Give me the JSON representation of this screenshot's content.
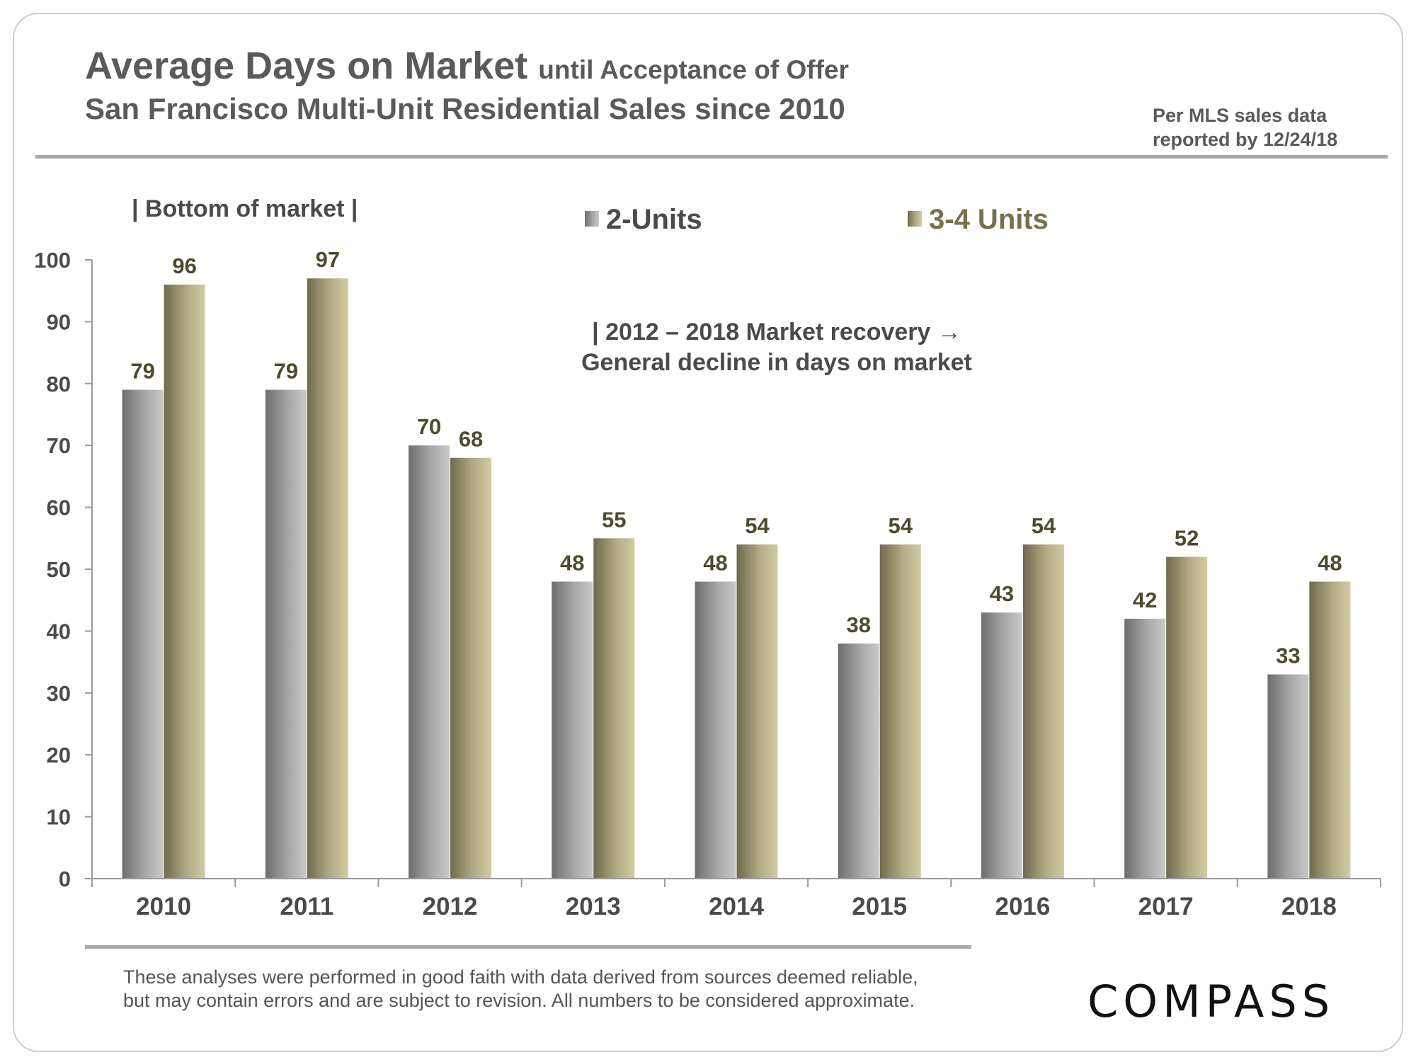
{
  "header": {
    "title_main": "Average Days on Market",
    "title_sub": "until Acceptance of Offer",
    "subtitle": "San Francisco Multi-Unit Residential Sales since 2010",
    "source_line1": "Per MLS sales data",
    "source_line2": "reported by 12/24/18"
  },
  "annotations": {
    "bottom_of_market": "| Bottom of market |",
    "recovery_line1": "|   2012 – 2018 Market recovery →",
    "recovery_line2": "General decline in days on market"
  },
  "footer": {
    "disclaimer_line1": "These analyses were performed in good faith with data derived from sources deemed reliable,",
    "disclaimer_line2": "but may contain errors and are subject to revision. All numbers to be considered  approximate.",
    "logo": "COMPASS"
  },
  "colors": {
    "two_units": "#a2a2a2",
    "three_four_units": "#b7b089",
    "legend_3_4_text": "#77704a",
    "data_label": "#4d4a2e"
  },
  "chart_data": {
    "type": "bar",
    "title": "Average Days on Market until Acceptance of Offer",
    "categories": [
      "2010",
      "2011",
      "2012",
      "2013",
      "2014",
      "2015",
      "2016",
      "2017",
      "2018"
    ],
    "series": [
      {
        "name": "2-Units",
        "values": [
          79,
          79,
          70,
          48,
          48,
          38,
          43,
          42,
          33
        ]
      },
      {
        "name": "3-4 Units",
        "values": [
          96,
          97,
          68,
          55,
          54,
          54,
          54,
          52,
          48
        ]
      }
    ],
    "ylim": [
      0,
      100
    ],
    "yticks": [
      "0",
      "10",
      "20",
      "30",
      "40",
      "50",
      "60",
      "70",
      "80",
      "90",
      "100"
    ],
    "xlabel": "",
    "ylabel": "",
    "legend": "top",
    "grid": false
  }
}
